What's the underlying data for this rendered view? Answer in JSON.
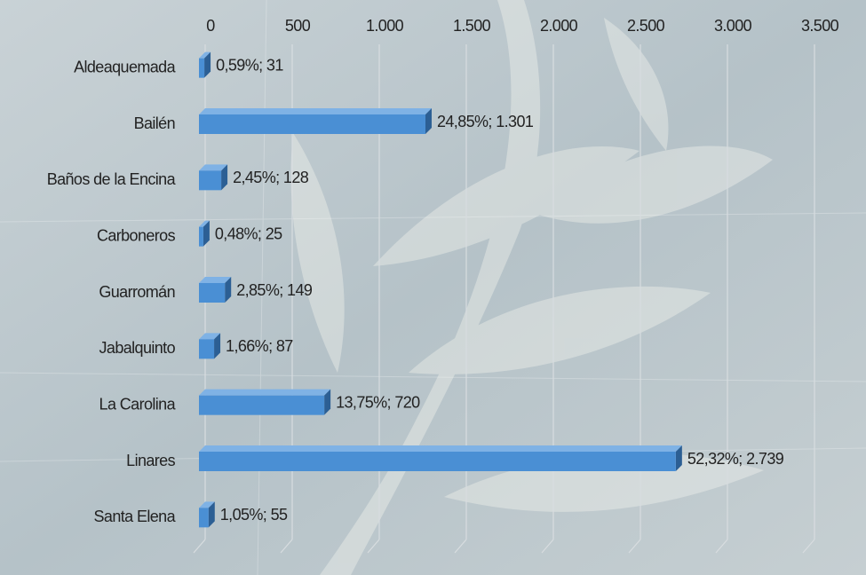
{
  "chart_data": {
    "type": "bar",
    "orientation": "horizontal",
    "categories": [
      "Aldeaquemada",
      "Bailén",
      "Baños de la Encina",
      "Carboneros",
      "Guarromán",
      "Jabalquinto",
      "La Carolina",
      "Linares",
      "Santa Elena"
    ],
    "values": [
      31,
      1301,
      128,
      25,
      149,
      87,
      720,
      2739,
      55
    ],
    "value_labels": [
      "0,59%;  31",
      "24,85%;  1.301",
      "2,45%;  128",
      "0,48%;  25",
      "2,85%;  149",
      "1,66%;  87",
      "13,75%;  720",
      "52,32%;  2.739",
      "1,05%;  55"
    ],
    "color": "#4a8fd4",
    "xlim": [
      0,
      3500
    ],
    "xticks": [
      0,
      500,
      {
        "value": 1000,
        "label": "1.000"
      },
      {
        "value": 1500,
        "label": "1.500"
      },
      {
        "value": 2000,
        "label": "2.000"
      },
      {
        "value": 2500,
        "label": "2.500"
      },
      {
        "value": 3000,
        "label": "3.000"
      },
      {
        "value": 3500,
        "label": "3.500"
      }
    ],
    "grid": true
  }
}
